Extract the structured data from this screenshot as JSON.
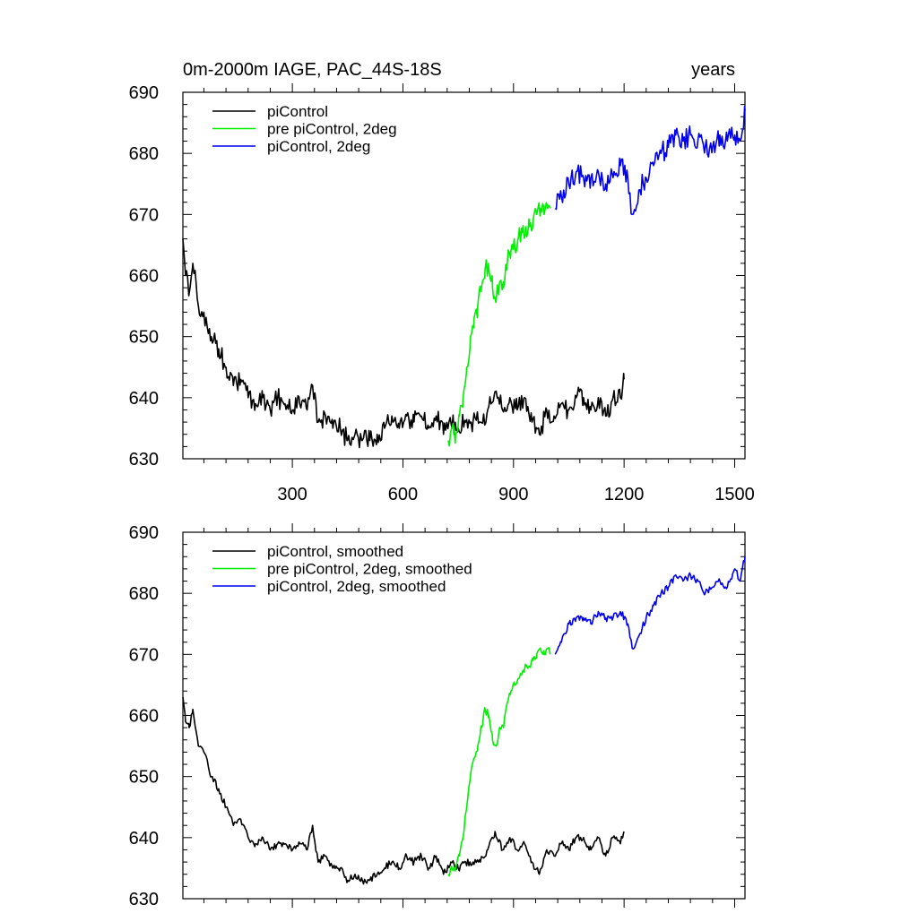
{
  "chart_data": [
    {
      "type": "line",
      "title_left": "0m-2000m IAGE, PAC_44S-18S",
      "title_right": "years",
      "xlim": [
        3,
        1528
      ],
      "ylim": [
        630,
        690
      ],
      "xticks": [
        300,
        600,
        900,
        1200,
        1500
      ],
      "yticks": [
        630,
        640,
        650,
        660,
        670,
        680,
        690
      ],
      "xtick_labels_shown": true,
      "grid": false,
      "legend_position": "top-left",
      "series": [
        {
          "name": "piControl",
          "color": "#000000",
          "x": [
            3,
            10,
            20,
            30,
            45,
            60,
            80,
            100,
            120,
            140,
            160,
            180,
            200,
            220,
            240,
            260,
            280,
            300,
            320,
            340,
            355,
            370,
            390,
            410,
            430,
            450,
            470,
            490,
            510,
            530,
            550,
            570,
            590,
            610,
            630,
            650,
            670,
            690,
            710,
            730,
            750,
            770,
            790,
            810,
            830,
            850,
            870,
            890,
            910,
            930,
            950,
            970,
            990,
            1010,
            1030,
            1050,
            1070,
            1090,
            1110,
            1130,
            1150,
            1170,
            1190,
            1200
          ],
          "y": [
            666,
            660,
            657,
            662,
            655,
            654,
            650,
            648,
            645,
            642,
            643,
            640,
            639,
            640,
            638,
            640,
            639,
            638,
            639,
            638,
            642,
            636,
            637,
            635,
            635,
            633,
            634,
            633,
            633,
            634,
            635,
            637,
            635,
            637,
            636,
            637,
            635,
            637,
            634,
            636,
            635,
            636,
            636,
            636,
            638,
            641,
            638,
            640,
            638,
            640,
            636,
            634,
            638,
            637,
            639,
            638,
            640,
            640,
            638,
            640,
            637,
            640,
            640,
            643
          ]
        },
        {
          "name": "pre piControl, 2deg",
          "color": "#00ee00",
          "x": [
            723,
            733,
            743,
            753,
            763,
            773,
            783,
            793,
            803,
            813,
            823,
            833,
            843,
            853,
            863,
            873,
            883,
            893,
            903,
            913,
            923,
            933,
            943,
            953,
            963,
            973,
            983,
            993,
            1000
          ],
          "y": [
            633,
            635,
            634,
            637,
            640,
            645,
            650,
            653,
            655,
            658,
            661,
            661,
            658,
            656,
            659,
            658,
            662,
            664,
            665,
            666,
            667,
            668,
            668,
            669,
            670,
            671,
            670,
            671,
            671
          ]
        },
        {
          "name": "piControl, 2deg",
          "color": "#0000ee",
          "x": [
            1013,
            1030,
            1050,
            1070,
            1090,
            1110,
            1130,
            1150,
            1170,
            1190,
            1210,
            1222,
            1240,
            1260,
            1280,
            1300,
            1320,
            1340,
            1360,
            1380,
            1400,
            1420,
            1440,
            1460,
            1480,
            1500,
            1515,
            1528
          ],
          "y": [
            671,
            673,
            675,
            677,
            676,
            676,
            677,
            675,
            676,
            678,
            676,
            670,
            674,
            676,
            678,
            680,
            681,
            683,
            682,
            683,
            682,
            681,
            681,
            683,
            682,
            683,
            682,
            687
          ]
        }
      ]
    },
    {
      "type": "line",
      "xlim": [
        3,
        1528
      ],
      "ylim": [
        630,
        690
      ],
      "xticks": [
        300,
        600,
        900,
        1200,
        1500
      ],
      "yticks": [
        630,
        640,
        650,
        660,
        670,
        680,
        690
      ],
      "xtick_labels_shown": false,
      "grid": false,
      "legend_position": "top-left",
      "series": [
        {
          "name": "piControl, smoothed",
          "color": "#000000",
          "x": [
            3,
            10,
            20,
            30,
            45,
            60,
            80,
            100,
            120,
            140,
            160,
            180,
            200,
            220,
            240,
            260,
            280,
            300,
            320,
            340,
            355,
            370,
            390,
            410,
            430,
            450,
            470,
            490,
            510,
            530,
            550,
            570,
            590,
            610,
            630,
            650,
            670,
            690,
            710,
            730,
            750,
            770,
            790,
            810,
            830,
            850,
            870,
            890,
            910,
            930,
            950,
            970,
            990,
            1010,
            1030,
            1050,
            1070,
            1090,
            1110,
            1130,
            1150,
            1170,
            1190,
            1200
          ],
          "y": [
            663,
            659,
            658,
            661,
            655,
            654,
            650,
            648,
            645,
            642,
            643,
            640,
            639,
            640,
            638,
            639,
            639,
            638,
            639,
            638,
            642,
            636,
            637,
            635,
            635,
            633,
            634,
            633,
            633,
            634,
            635,
            636,
            635,
            637,
            636,
            637,
            635,
            637,
            634,
            636,
            635,
            636,
            636,
            636,
            638,
            641,
            638,
            640,
            638,
            639,
            636,
            634,
            638,
            637,
            639,
            638,
            640,
            640,
            638,
            640,
            637,
            640,
            639,
            641
          ]
        },
        {
          "name": "pre piControl, 2deg, smoothed",
          "color": "#00ee00",
          "x": [
            723,
            733,
            743,
            753,
            763,
            773,
            783,
            793,
            803,
            813,
            823,
            833,
            843,
            853,
            863,
            873,
            883,
            893,
            903,
            913,
            923,
            933,
            943,
            953,
            963,
            973,
            983,
            993,
            1000
          ],
          "y": [
            634,
            635,
            635,
            637,
            640,
            645,
            650,
            653,
            655,
            658,
            661,
            660,
            656,
            655,
            658,
            658,
            662,
            664,
            665,
            666,
            667,
            668,
            668,
            669,
            670,
            671,
            670,
            671,
            670
          ]
        },
        {
          "name": "piControl, 2deg, smoothed",
          "color": "#0000ee",
          "x": [
            1013,
            1030,
            1050,
            1070,
            1090,
            1110,
            1130,
            1150,
            1170,
            1190,
            1210,
            1222,
            1240,
            1260,
            1280,
            1300,
            1320,
            1340,
            1360,
            1380,
            1400,
            1420,
            1440,
            1460,
            1480,
            1500,
            1515,
            1528
          ],
          "y": [
            670,
            672,
            675,
            676,
            676,
            675,
            677,
            676,
            676,
            677,
            675,
            671,
            673,
            676,
            678,
            680,
            681,
            683,
            682,
            683,
            682,
            680,
            681,
            682,
            681,
            684,
            682,
            686
          ]
        }
      ]
    }
  ]
}
